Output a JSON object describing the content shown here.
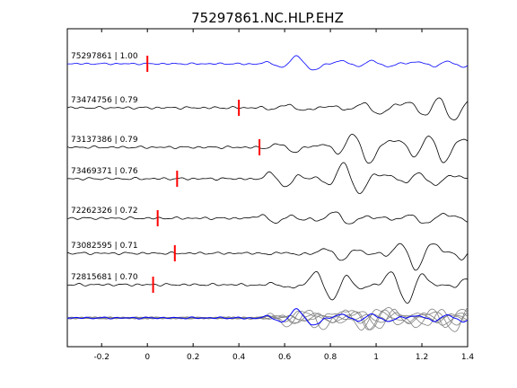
{
  "chart_data": {
    "type": "line",
    "title": "75297861.NC.HLP.EHZ",
    "xlim": [
      -0.35,
      1.4
    ],
    "xticks": [
      -0.2,
      0,
      0.2,
      0.4,
      0.6,
      0.8,
      1,
      1.2,
      1.4
    ],
    "xtick_labels": [
      "-0.2",
      "0",
      "0.2",
      "0.4",
      "0.6",
      "0.8",
      "1",
      "1.2",
      "1.4"
    ],
    "xlabel": "",
    "ylabel": "",
    "grid": false,
    "colors": {
      "reference": "#0000ff",
      "trace": "#000000",
      "pick": "#ff0000",
      "stack": "#808080"
    },
    "traces": [
      {
        "label": "75297861 | 1.00",
        "pick_time": 0.0,
        "color": "blue",
        "seed": 1
      },
      {
        "label": "73474756 | 0.79",
        "pick_time": 0.4,
        "color": "black",
        "seed": 2
      },
      {
        "label": "73137386 | 0.79",
        "pick_time": 0.49,
        "color": "black",
        "seed": 3
      },
      {
        "label": "73469371 | 0.76",
        "pick_time": 0.13,
        "color": "black",
        "seed": 4
      },
      {
        "label": "72262326 | 0.72",
        "pick_time": 0.045,
        "color": "black",
        "seed": 5
      },
      {
        "label": "73082595 | 0.71",
        "pick_time": 0.12,
        "color": "black",
        "seed": 6
      },
      {
        "label": "72815681 | 0.70",
        "pick_time": 0.025,
        "color": "black",
        "seed": 7
      }
    ],
    "overlay": {
      "gray_count": 6
    }
  }
}
